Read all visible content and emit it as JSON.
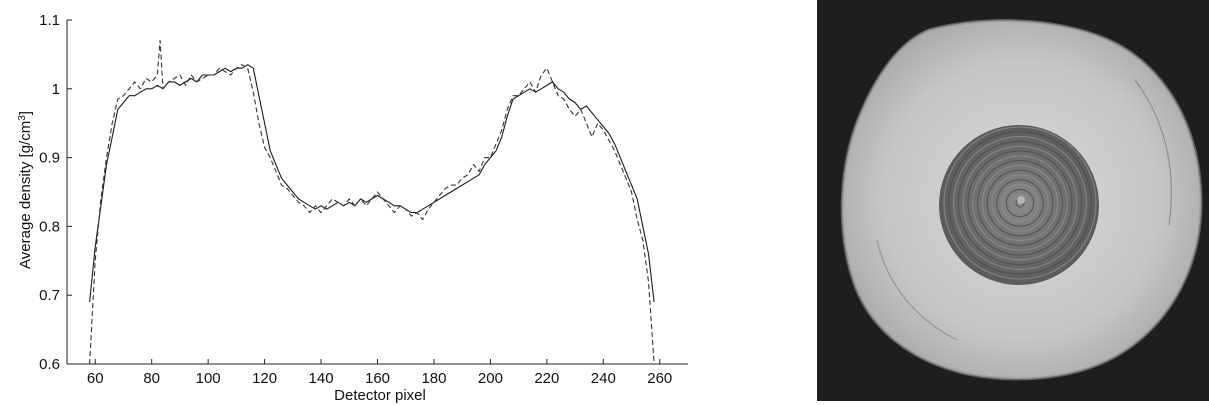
{
  "chart_data": {
    "type": "line",
    "xlabel": "Detector pixel",
    "ylabel_main": "Average density [g/cm",
    "ylabel_sup": "3",
    "ylabel_tail": "]",
    "xlim": [
      50,
      270
    ],
    "ylim": [
      0.6,
      1.1
    ],
    "x_ticks": [
      60,
      80,
      100,
      120,
      140,
      160,
      180,
      200,
      220,
      240,
      260
    ],
    "y_ticks": [
      0.6,
      0.7,
      0.8,
      0.9,
      1,
      1.1
    ],
    "y_tick_labels": [
      "0.6",
      "0.7",
      "0.8",
      "0.9",
      "1",
      "1.1"
    ],
    "grid": false,
    "series": [
      {
        "style": "solid",
        "color": "#1a1a1a",
        "x": [
          58,
          60,
          62,
          64,
          66,
          68,
          70,
          72,
          74,
          76,
          78,
          80,
          82,
          84,
          86,
          88,
          90,
          92,
          94,
          96,
          98,
          100,
          102,
          104,
          106,
          108,
          110,
          112,
          114,
          116,
          118,
          120,
          122,
          124,
          126,
          128,
          130,
          132,
          134,
          136,
          138,
          140,
          142,
          144,
          146,
          148,
          150,
          152,
          154,
          156,
          158,
          160,
          162,
          164,
          166,
          168,
          170,
          172,
          174,
          176,
          178,
          180,
          182,
          184,
          186,
          188,
          190,
          192,
          194,
          196,
          198,
          200,
          202,
          204,
          206,
          208,
          210,
          212,
          214,
          216,
          218,
          220,
          222,
          224,
          226,
          228,
          230,
          232,
          234,
          236,
          238,
          240,
          242,
          244,
          246,
          248,
          250,
          252,
          254,
          256,
          258
        ],
        "values": [
          0.69,
          0.77,
          0.83,
          0.89,
          0.93,
          0.97,
          0.98,
          0.99,
          0.99,
          0.995,
          1.0,
          1.0,
          1.005,
          1.0,
          1.01,
          1.01,
          1.005,
          1.01,
          1.015,
          1.01,
          1.02,
          1.02,
          1.02,
          1.025,
          1.03,
          1.025,
          1.03,
          1.03,
          1.035,
          1.03,
          0.99,
          0.95,
          0.91,
          0.89,
          0.87,
          0.86,
          0.85,
          0.84,
          0.835,
          0.83,
          0.825,
          0.83,
          0.825,
          0.83,
          0.835,
          0.83,
          0.835,
          0.83,
          0.84,
          0.835,
          0.84,
          0.845,
          0.84,
          0.835,
          0.83,
          0.83,
          0.825,
          0.82,
          0.82,
          0.825,
          0.83,
          0.835,
          0.84,
          0.845,
          0.85,
          0.855,
          0.86,
          0.865,
          0.87,
          0.875,
          0.89,
          0.9,
          0.91,
          0.93,
          0.96,
          0.985,
          0.99,
          0.995,
          1.0,
          0.995,
          1.0,
          1.005,
          1.01,
          1.0,
          0.995,
          0.985,
          0.98,
          0.97,
          0.975,
          0.965,
          0.955,
          0.945,
          0.935,
          0.92,
          0.9,
          0.88,
          0.86,
          0.84,
          0.8,
          0.76,
          0.69
        ]
      },
      {
        "style": "dashed",
        "color": "#333333",
        "x": [
          58,
          60,
          62,
          64,
          66,
          68,
          70,
          72,
          74,
          76,
          78,
          80,
          82,
          83,
          84,
          86,
          88,
          90,
          92,
          94,
          96,
          98,
          100,
          102,
          104,
          106,
          108,
          110,
          112,
          114,
          116,
          118,
          120,
          122,
          124,
          126,
          128,
          130,
          132,
          134,
          136,
          138,
          140,
          142,
          144,
          146,
          148,
          150,
          152,
          154,
          156,
          158,
          160,
          162,
          164,
          166,
          168,
          170,
          172,
          174,
          176,
          178,
          180,
          182,
          184,
          186,
          188,
          190,
          192,
          194,
          196,
          198,
          200,
          202,
          204,
          206,
          208,
          210,
          212,
          214,
          216,
          218,
          220,
          222,
          224,
          226,
          228,
          230,
          232,
          234,
          236,
          238,
          240,
          242,
          244,
          246,
          248,
          250,
          252,
          254,
          256,
          258
        ],
        "values": [
          0.6,
          0.75,
          0.84,
          0.9,
          0.95,
          0.985,
          0.99,
          1.0,
          1.01,
          1.0,
          1.015,
          1.01,
          1.02,
          1.07,
          1.0,
          1.01,
          1.015,
          1.02,
          1.005,
          1.02,
          1.01,
          1.015,
          1.02,
          1.02,
          1.03,
          1.025,
          1.02,
          1.03,
          1.035,
          1.03,
          0.995,
          0.95,
          0.915,
          0.9,
          0.88,
          0.86,
          0.855,
          0.845,
          0.835,
          0.83,
          0.82,
          0.83,
          0.82,
          0.83,
          0.84,
          0.835,
          0.83,
          0.84,
          0.83,
          0.84,
          0.83,
          0.84,
          0.85,
          0.84,
          0.83,
          0.82,
          0.83,
          0.825,
          0.815,
          0.82,
          0.81,
          0.825,
          0.835,
          0.845,
          0.855,
          0.86,
          0.86,
          0.87,
          0.875,
          0.89,
          0.88,
          0.9,
          0.9,
          0.92,
          0.94,
          0.97,
          0.99,
          0.99,
          1.0,
          1.01,
          0.995,
          1.02,
          1.03,
          1.01,
          0.99,
          0.985,
          0.97,
          0.96,
          0.97,
          0.95,
          0.93,
          0.95,
          0.94,
          0.925,
          0.91,
          0.89,
          0.87,
          0.85,
          0.81,
          0.78,
          0.72,
          0.6
        ]
      }
    ]
  },
  "photo": {
    "subject": "cross-section of a wood log with concentric growth rings",
    "background_color": "#1e1e1e",
    "disc_color": "#c9c9c9",
    "heartwood_color": "#6a6a6a"
  }
}
